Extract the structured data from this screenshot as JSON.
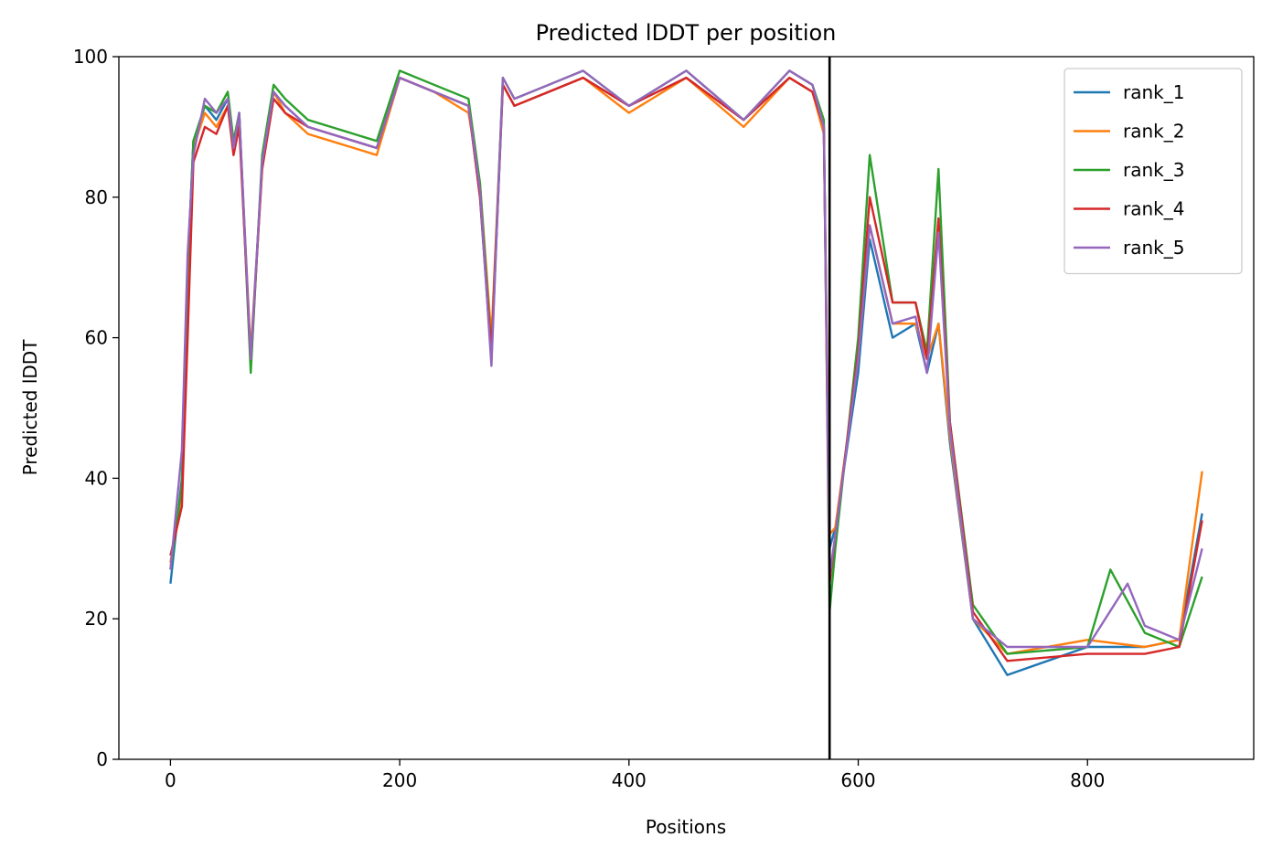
{
  "chart_data": {
    "type": "line",
    "title": "Predicted lDDT per position",
    "xlabel": "Positions",
    "ylabel": "Predicted lDDT",
    "xlim": [
      -45,
      945
    ],
    "ylim": [
      0,
      100
    ],
    "xticks": [
      0,
      200,
      400,
      600,
      800
    ],
    "yticks": [
      0,
      20,
      40,
      60,
      80,
      100
    ],
    "grid": false,
    "legend_position": "top-right",
    "vline_x": 575,
    "series": [
      {
        "name": "rank_1",
        "color": "#1f77b4",
        "x": [
          0,
          10,
          15,
          20,
          30,
          40,
          50,
          55,
          60,
          70,
          80,
          90,
          100,
          120,
          140,
          160,
          180,
          200,
          230,
          260,
          270,
          280,
          290,
          300,
          330,
          360,
          400,
          450,
          500,
          540,
          560,
          570,
          575,
          580,
          600,
          610,
          630,
          650,
          660,
          670,
          680,
          700,
          730,
          800,
          850,
          880,
          900
        ],
        "y": [
          25,
          40,
          70,
          88,
          93,
          91,
          94,
          87,
          92,
          56,
          85,
          95,
          93,
          90,
          89,
          88,
          87,
          97,
          95,
          93,
          80,
          57,
          96,
          93,
          95,
          97,
          93,
          97,
          91,
          97,
          95,
          90,
          30,
          33,
          55,
          74,
          60,
          62,
          55,
          62,
          45,
          20,
          12,
          16,
          16,
          17,
          35
        ]
      },
      {
        "name": "rank_2",
        "color": "#ff7f0e",
        "x": [
          0,
          10,
          15,
          20,
          30,
          40,
          50,
          55,
          60,
          70,
          80,
          90,
          100,
          120,
          140,
          160,
          180,
          200,
          230,
          260,
          270,
          280,
          290,
          300,
          330,
          360,
          400,
          450,
          500,
          540,
          560,
          570,
          575,
          580,
          600,
          610,
          630,
          650,
          660,
          670,
          680,
          700,
          730,
          800,
          850,
          880,
          900
        ],
        "y": [
          28,
          38,
          68,
          87,
          92,
          90,
          93,
          86,
          91,
          58,
          84,
          95,
          92,
          89,
          88,
          87,
          86,
          97,
          95,
          92,
          82,
          60,
          96,
          93,
          95,
          97,
          92,
          97,
          90,
          97,
          95,
          89,
          32,
          33,
          57,
          76,
          62,
          62,
          57,
          62,
          46,
          20,
          15,
          17,
          16,
          17,
          41
        ]
      },
      {
        "name": "rank_3",
        "color": "#2ca02c",
        "x": [
          0,
          10,
          15,
          20,
          30,
          40,
          50,
          55,
          60,
          70,
          80,
          90,
          100,
          120,
          140,
          160,
          180,
          200,
          230,
          260,
          270,
          280,
          290,
          300,
          330,
          360,
          400,
          450,
          500,
          540,
          560,
          570,
          575,
          580,
          600,
          610,
          630,
          650,
          660,
          670,
          680,
          700,
          730,
          800,
          820,
          850,
          880,
          900
        ],
        "y": [
          27,
          39,
          70,
          88,
          93,
          92,
          95,
          88,
          92,
          55,
          86,
          96,
          94,
          91,
          90,
          89,
          88,
          98,
          96,
          94,
          82,
          58,
          97,
          94,
          96,
          98,
          93,
          98,
          91,
          98,
          96,
          91,
          21,
          30,
          60,
          86,
          65,
          65,
          58,
          84,
          48,
          22,
          15,
          16,
          27,
          18,
          16,
          26
        ]
      },
      {
        "name": "rank_4",
        "color": "#d62728",
        "x": [
          0,
          10,
          15,
          20,
          30,
          40,
          50,
          55,
          60,
          70,
          80,
          90,
          100,
          120,
          140,
          160,
          180,
          200,
          230,
          260,
          270,
          280,
          290,
          300,
          330,
          360,
          400,
          450,
          500,
          540,
          560,
          570,
          575,
          580,
          600,
          610,
          630,
          650,
          660,
          670,
          680,
          700,
          730,
          800,
          850,
          880,
          900
        ],
        "y": [
          29,
          36,
          60,
          85,
          90,
          89,
          93,
          86,
          90,
          57,
          84,
          94,
          92,
          90,
          89,
          88,
          87,
          97,
          95,
          93,
          80,
          58,
          96,
          93,
          95,
          97,
          93,
          97,
          91,
          97,
          95,
          90,
          25,
          32,
          58,
          80,
          65,
          65,
          57,
          77,
          48,
          21,
          14,
          15,
          15,
          16,
          34
        ]
      },
      {
        "name": "rank_5",
        "color": "#9467bd",
        "x": [
          0,
          10,
          15,
          20,
          30,
          40,
          50,
          55,
          60,
          70,
          80,
          90,
          100,
          120,
          140,
          160,
          180,
          200,
          230,
          260,
          270,
          280,
          290,
          300,
          330,
          360,
          400,
          450,
          500,
          540,
          560,
          570,
          575,
          580,
          600,
          610,
          630,
          650,
          660,
          670,
          680,
          700,
          730,
          800,
          835,
          850,
          880,
          900
        ],
        "y": [
          27,
          44,
          72,
          86,
          94,
          92,
          94,
          87,
          92,
          57,
          85,
          95,
          93,
          90,
          89,
          88,
          87,
          97,
          95,
          93,
          81,
          56,
          97,
          94,
          96,
          98,
          93,
          98,
          91,
          98,
          96,
          90,
          26,
          32,
          57,
          76,
          62,
          63,
          55,
          75,
          47,
          20,
          16,
          16,
          25,
          19,
          17,
          30
        ]
      }
    ]
  }
}
